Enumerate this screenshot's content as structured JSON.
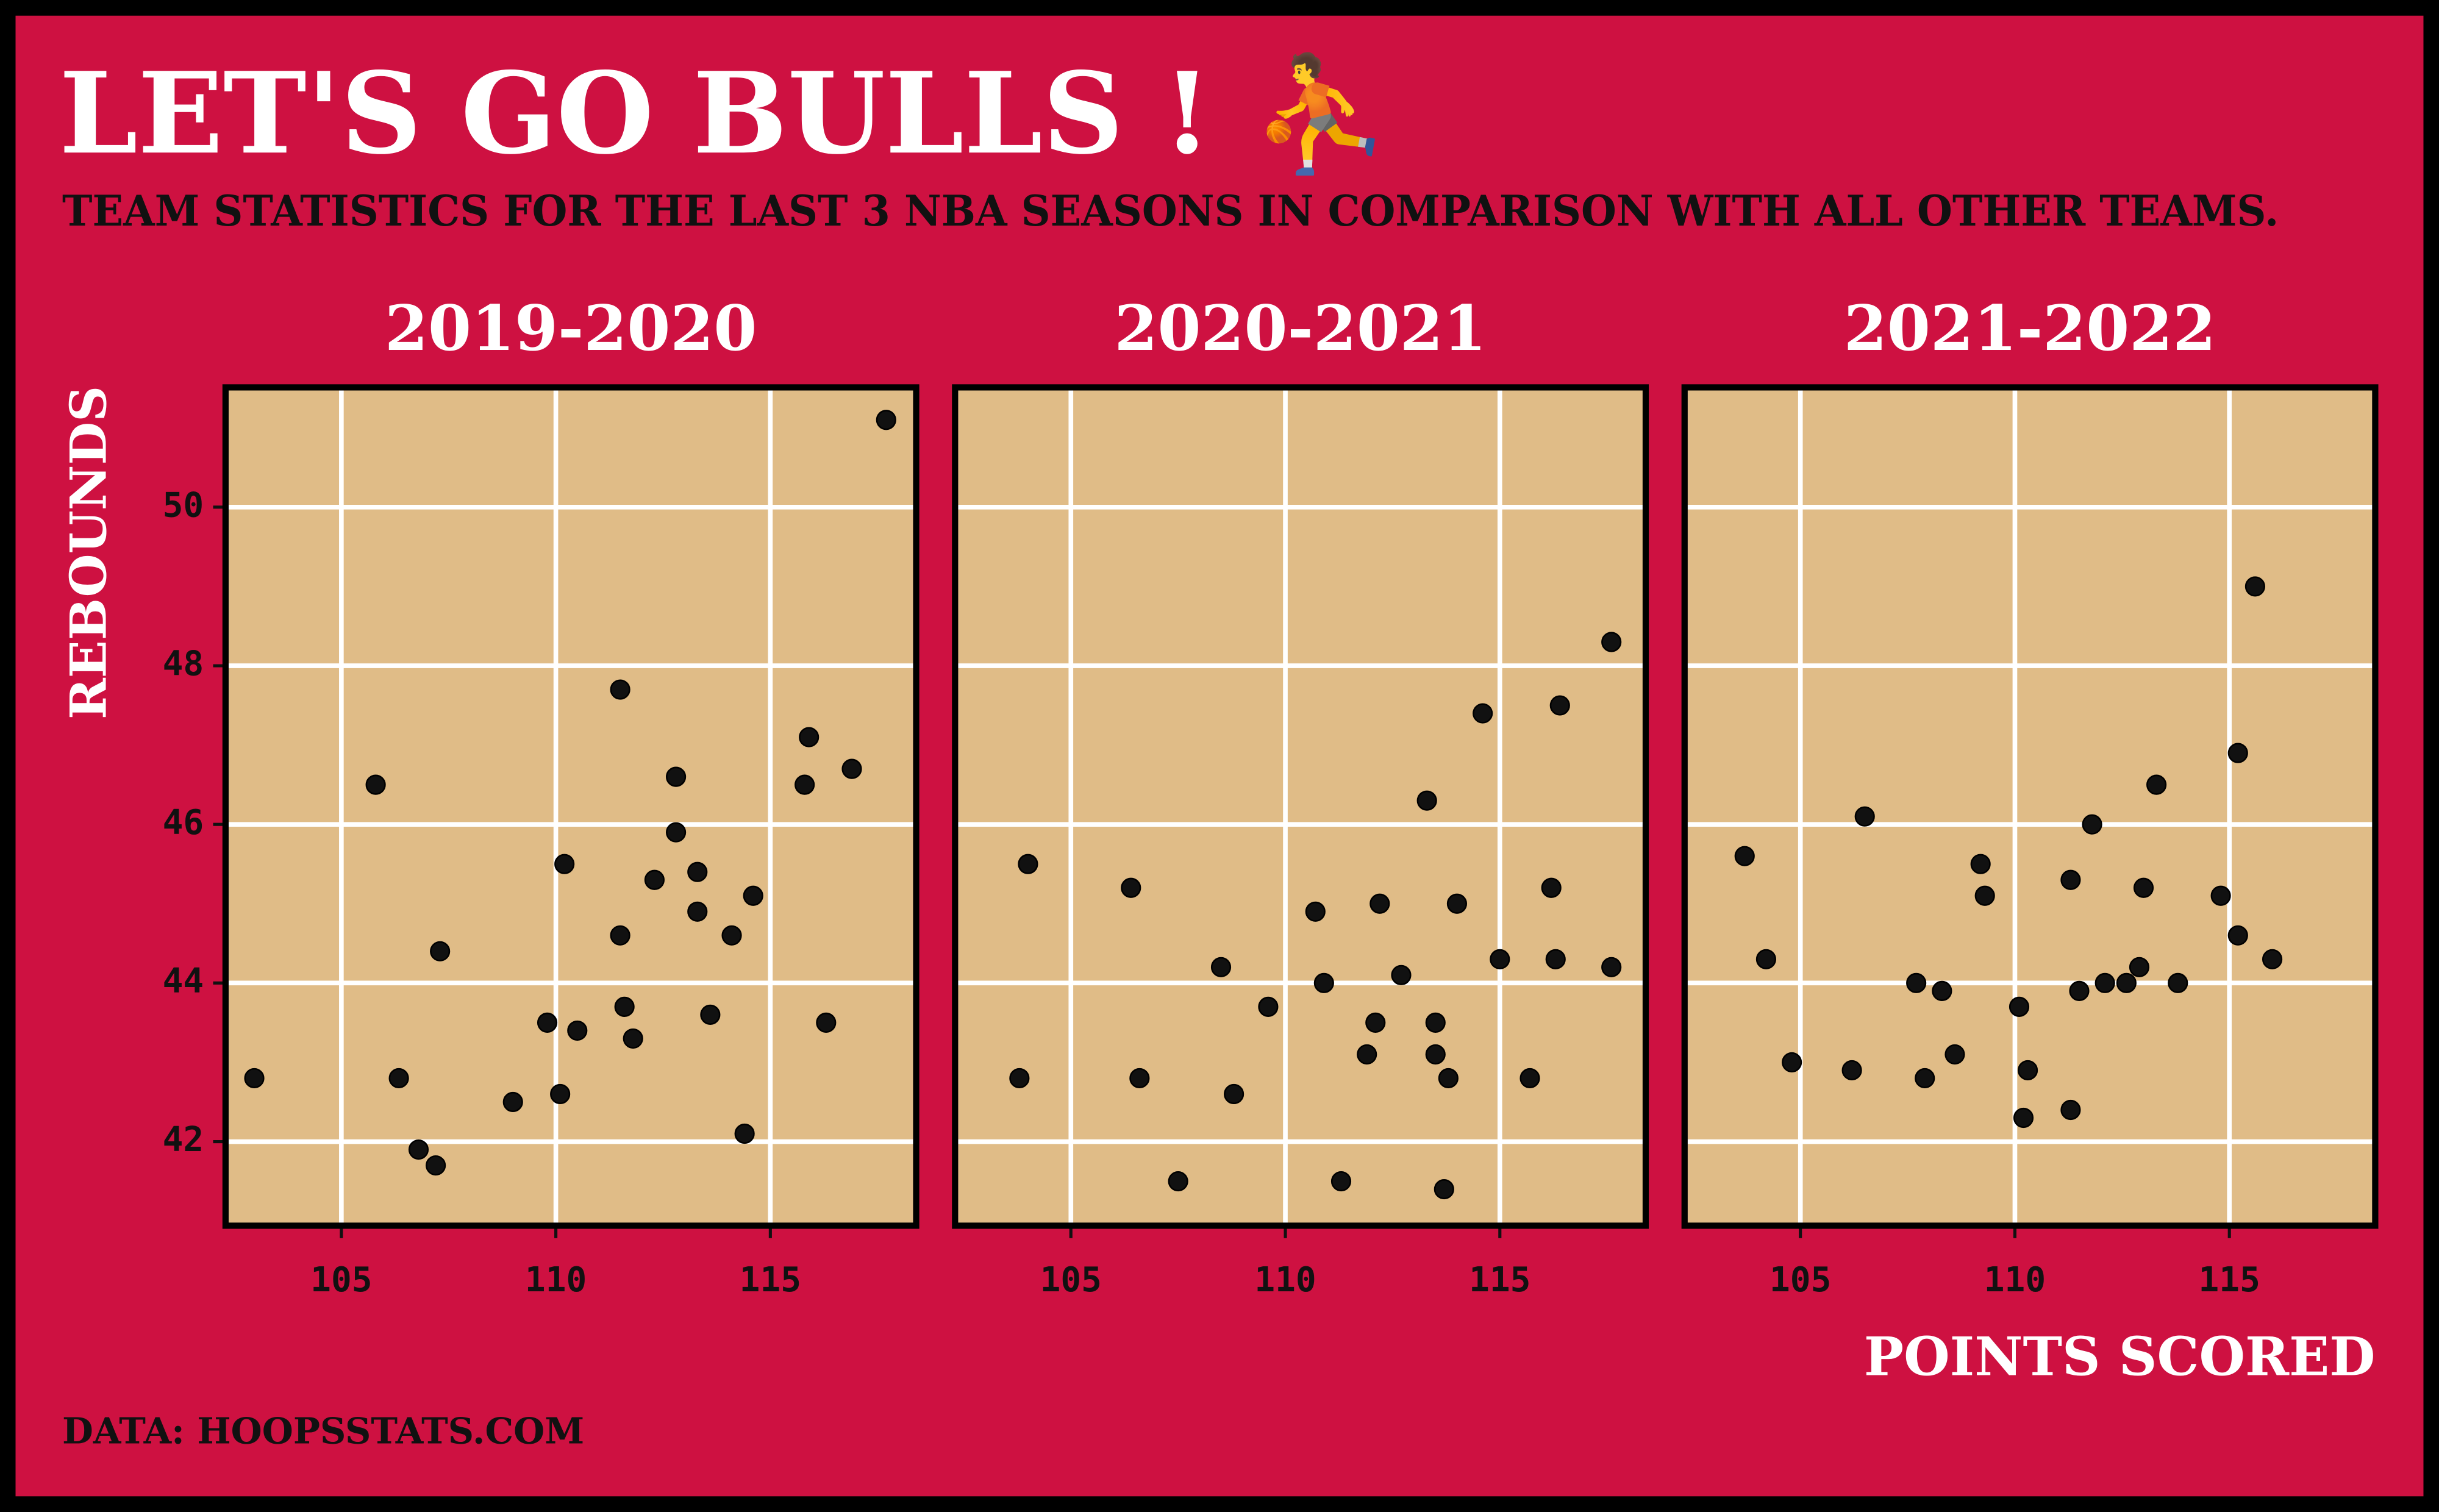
{
  "title": "LET'S GO BULLS ! ⛹️",
  "subtitle": "TEAM STATISTICS FOR THE LAST 3 NBA SEASONS IN COMPARISON WITH ALL OTHER TEAMS.",
  "xlabel": "POINTS SCORED",
  "ylabel": "REBOUNDS",
  "caption": "DATA: HOOPSSTATS.COM",
  "chart_data": [
    {
      "type": "scatter",
      "title": "2019-2020",
      "color": "#111111",
      "x": [
        102.97,
        105.8,
        106.34,
        107.3,
        106.8,
        107.2,
        109.0,
        109.8,
        110.1,
        110.2,
        110.5,
        111.5,
        111.5,
        111.6,
        111.8,
        112.3,
        112.8,
        112.8,
        113.3,
        113.3,
        113.6,
        114.1,
        114.4,
        114.6,
        115.8,
        115.9,
        116.3,
        116.9,
        117.7
      ],
      "values": [
        42.8,
        46.5,
        42.8,
        44.4,
        41.9,
        41.7,
        42.5,
        43.5,
        42.6,
        45.5,
        43.4,
        47.7,
        44.6,
        43.7,
        43.3,
        45.3,
        46.6,
        45.9,
        45.4,
        44.9,
        43.6,
        44.6,
        42.1,
        45.1,
        46.5,
        47.1,
        43.5,
        46.7,
        51.1
      ],
      "xlim": [
        102.3,
        118.4
      ],
      "ylim": [
        40.94,
        51.51
      ],
      "xticks": [
        105,
        110,
        115
      ],
      "yticks": [
        42,
        44,
        46,
        48,
        50
      ],
      "grid": true
    },
    {
      "type": "scatter",
      "title": "2020-2021",
      "color": "#111111",
      "x": [
        103.8,
        104.0,
        106.4,
        106.6,
        107.5,
        108.5,
        108.8,
        109.6,
        110.7,
        110.9,
        111.3,
        111.9,
        112.1,
        112.2,
        112.7,
        113.3,
        113.5,
        113.5,
        113.7,
        113.8,
        114.0,
        114.6,
        115.0,
        115.7,
        116.2,
        116.3,
        116.4,
        117.6,
        117.6
      ],
      "values": [
        42.8,
        45.5,
        45.2,
        42.8,
        41.5,
        44.2,
        42.6,
        43.7,
        44.9,
        44.0,
        41.5,
        43.1,
        43.5,
        45.0,
        44.1,
        46.3,
        43.5,
        43.1,
        41.4,
        42.8,
        45.0,
        47.4,
        44.3,
        42.8,
        45.2,
        44.3,
        47.5,
        48.3,
        44.2
      ],
      "xlim": [
        102.3,
        118.4
      ],
      "ylim": [
        40.94,
        51.51
      ],
      "xticks": [
        105,
        110,
        115
      ],
      "yticks": [
        42,
        44,
        46,
        48,
        50
      ],
      "grid": true
    },
    {
      "type": "scatter",
      "title": "2021-2022",
      "color": "#111111",
      "x": [
        103.7,
        104.2,
        104.8,
        106.2,
        106.5,
        107.7,
        107.9,
        108.3,
        108.6,
        109.2,
        109.3,
        110.1,
        110.2,
        110.3,
        111.3,
        111.3,
        111.5,
        111.8,
        112.1,
        112.6,
        112.9,
        113.0,
        113.3,
        113.8,
        114.8,
        115.2,
        115.2,
        115.6,
        116.0
      ],
      "values": [
        45.6,
        44.3,
        43.0,
        42.9,
        46.1,
        44.0,
        42.8,
        43.9,
        43.1,
        45.5,
        45.1,
        43.7,
        42.3,
        42.9,
        45.3,
        42.4,
        43.9,
        46.0,
        44.0,
        44.0,
        44.2,
        45.2,
        46.5,
        44.0,
        45.1,
        46.9,
        44.6,
        49.0,
        44.3
      ],
      "xlim": [
        102.3,
        118.4
      ],
      "ylim": [
        40.94,
        51.51
      ],
      "xticks": [
        105,
        110,
        115
      ],
      "yticks": [
        42,
        44,
        46,
        48,
        50
      ],
      "grid": true
    }
  ]
}
